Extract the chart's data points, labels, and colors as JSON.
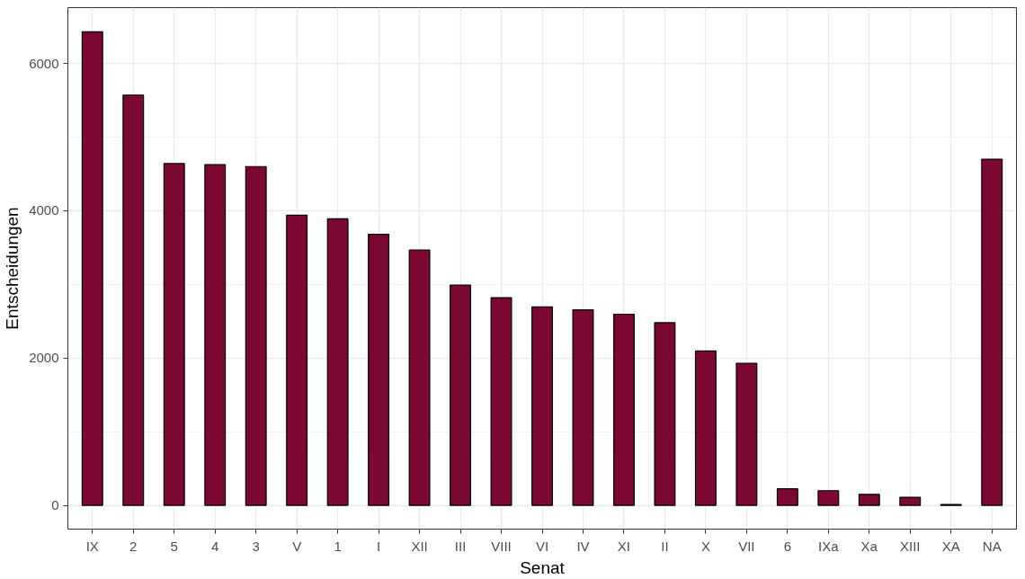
{
  "chart_data": {
    "type": "bar",
    "xlabel": "Senat",
    "ylabel": "Entscheidungen",
    "categories": [
      "IX",
      "2",
      "5",
      "4",
      "3",
      "V",
      "1",
      "I",
      "XII",
      "III",
      "VIII",
      "VI",
      "IV",
      "XI",
      "II",
      "X",
      "VII",
      "6",
      "IXa",
      "Xa",
      "XIII",
      "XA",
      "NA"
    ],
    "values": [
      6430,
      5570,
      4640,
      4625,
      4600,
      3940,
      3890,
      3680,
      3465,
      2990,
      2820,
      2695,
      2655,
      2595,
      2480,
      2095,
      1930,
      225,
      200,
      150,
      110,
      12,
      4700
    ],
    "color": "#7b0832",
    "ylim": [
      -322,
      6757
    ],
    "yticks": [
      0,
      2000,
      4000,
      6000
    ],
    "grid": true
  }
}
